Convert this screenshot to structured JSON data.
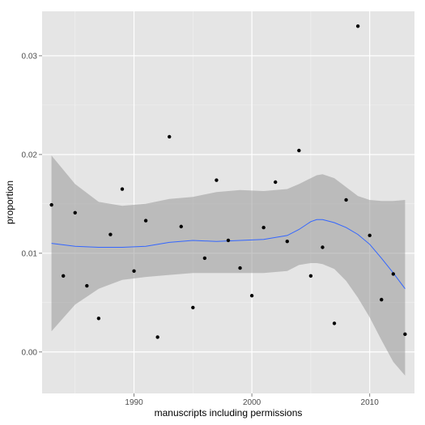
{
  "chart_data": {
    "type": "scatter",
    "title": "",
    "xlabel": "manuscripts including permissions",
    "ylabel": "proportion",
    "xlim": [
      1982.2,
      2013.8
    ],
    "ylim": [
      -0.0042,
      0.0345
    ],
    "x_ticks": [
      1990,
      2000,
      2010
    ],
    "x_tick_labels": [
      "1990",
      "2000",
      "2010"
    ],
    "y_ticks": [
      0.0,
      0.01,
      0.02,
      0.03
    ],
    "y_tick_labels": [
      "0.00",
      "0.01",
      "0.02",
      "0.03"
    ],
    "grid": true,
    "background": "#e5e5e5",
    "colors": {
      "points": "#000000",
      "smooth_line": "#3366ff",
      "confidence_band": "#999999",
      "grid_major": "#ffffff",
      "grid_minor": "#f2f2f2"
    },
    "points": [
      {
        "x": 1983,
        "y": 0.0149
      },
      {
        "x": 1984,
        "y": 0.0077
      },
      {
        "x": 1985,
        "y": 0.0141
      },
      {
        "x": 1986,
        "y": 0.0067
      },
      {
        "x": 1987,
        "y": 0.0034
      },
      {
        "x": 1988,
        "y": 0.0119
      },
      {
        "x": 1989,
        "y": 0.0165
      },
      {
        "x": 1990,
        "y": 0.0082
      },
      {
        "x": 1991,
        "y": 0.0133
      },
      {
        "x": 1992,
        "y": 0.0015
      },
      {
        "x": 1993,
        "y": 0.0218
      },
      {
        "x": 1994,
        "y": 0.0127
      },
      {
        "x": 1995,
        "y": 0.0045
      },
      {
        "x": 1996,
        "y": 0.0095
      },
      {
        "x": 1997,
        "y": 0.0174
      },
      {
        "x": 1998,
        "y": 0.0113
      },
      {
        "x": 1999,
        "y": 0.0085
      },
      {
        "x": 2000,
        "y": 0.0057
      },
      {
        "x": 2001,
        "y": 0.0126
      },
      {
        "x": 2002,
        "y": 0.0172
      },
      {
        "x": 2003,
        "y": 0.0112
      },
      {
        "x": 2004,
        "y": 0.0204
      },
      {
        "x": 2005,
        "y": 0.0077
      },
      {
        "x": 2006,
        "y": 0.0106
      },
      {
        "x": 2007,
        "y": 0.0029
      },
      {
        "x": 2008,
        "y": 0.0154
      },
      {
        "x": 2009,
        "y": 0.033
      },
      {
        "x": 2010,
        "y": 0.0118
      },
      {
        "x": 2011,
        "y": 0.0053
      },
      {
        "x": 2012,
        "y": 0.0079
      },
      {
        "x": 2013,
        "y": 0.0018
      }
    ],
    "smooth": {
      "x": [
        1983,
        1985,
        1987,
        1989,
        1991,
        1993,
        1995,
        1997,
        1999,
        2001,
        2003,
        2004,
        2005,
        2005.5,
        2006,
        2007,
        2008,
        2009,
        2010,
        2011,
        2012,
        2013
      ],
      "y": [
        0.011,
        0.0107,
        0.0106,
        0.0106,
        0.0107,
        0.0111,
        0.0113,
        0.0112,
        0.0113,
        0.0114,
        0.0118,
        0.0124,
        0.0132,
        0.0134,
        0.0134,
        0.0131,
        0.0126,
        0.0119,
        0.0109,
        0.0095,
        0.008,
        0.0064
      ],
      "lower": [
        0.0021,
        0.0048,
        0.0064,
        0.0073,
        0.0076,
        0.0078,
        0.008,
        0.008,
        0.008,
        0.008,
        0.0082,
        0.0088,
        0.009,
        0.009,
        0.0089,
        0.0084,
        0.0072,
        0.0055,
        0.0035,
        0.0012,
        -0.001,
        -0.0024
      ],
      "upper": [
        0.0199,
        0.017,
        0.0152,
        0.0148,
        0.015,
        0.0155,
        0.0157,
        0.0162,
        0.0164,
        0.0163,
        0.0165,
        0.017,
        0.0176,
        0.0179,
        0.018,
        0.0176,
        0.0167,
        0.0158,
        0.0154,
        0.0153,
        0.0153,
        0.0154
      ]
    }
  }
}
